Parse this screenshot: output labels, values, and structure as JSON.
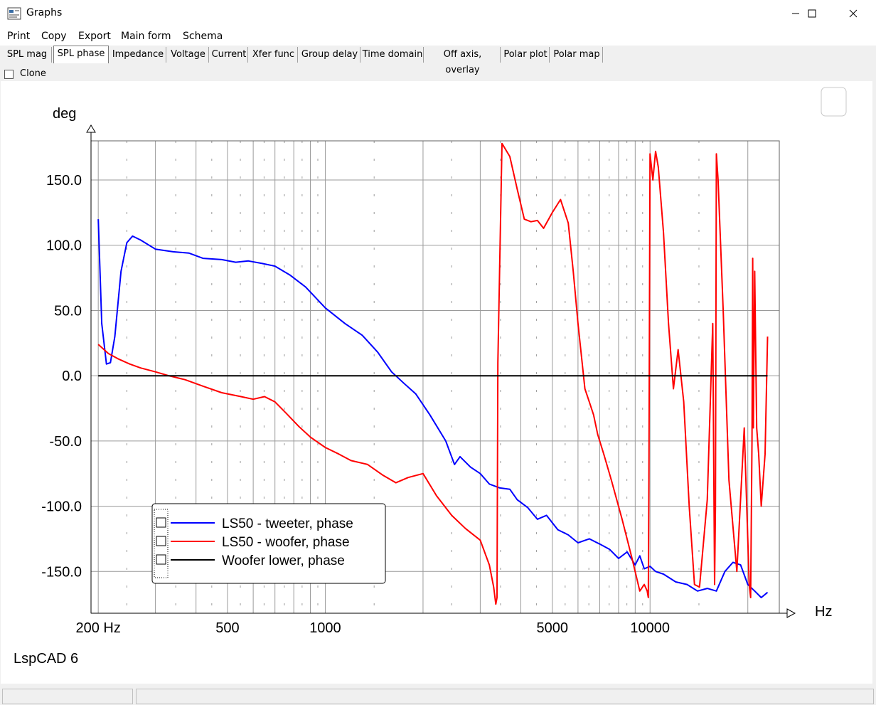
{
  "window": {
    "title": "Graphs",
    "minimize": "—",
    "maximize": "☐",
    "close": "✕"
  },
  "menu": [
    {
      "label": "Print",
      "id": "print"
    },
    {
      "label": "Copy",
      "id": "copy"
    },
    {
      "label": "Export",
      "id": "export"
    },
    {
      "label": "Main form",
      "id": "main-form"
    },
    {
      "label": "Schema",
      "id": "schema"
    }
  ],
  "tabs": [
    "SPL mag",
    "SPL phase",
    "Impedance",
    "Voltage",
    "Current",
    "Xfer func",
    "Group delay",
    "Time domain",
    "Off axis, overlay",
    "Polar plot",
    "Polar map"
  ],
  "active_tab": "SPL phase",
  "clone": {
    "label": "Clone",
    "checked": false
  },
  "footer_brand": "LspCAD 6",
  "status": {
    "left": "",
    "right": ""
  },
  "chart_data": {
    "type": "line",
    "ylabel": "deg",
    "xlabel": "Hz",
    "x_scale": "log",
    "xlim": [
      190,
      25000
    ],
    "ylim": [
      -182,
      180
    ],
    "grid": true,
    "legend_position": "bottom-left",
    "y_ticks": [
      150,
      100,
      50,
      0,
      -50,
      -100,
      -150
    ],
    "y_tick_labels": [
      "150.0",
      "100.0",
      "50.0",
      "0.0",
      "-50.0",
      "-100.0",
      "-150.0"
    ],
    "x_tick_labels": [
      {
        "x": 200,
        "label": "200 Hz"
      },
      {
        "x": 500,
        "label": "500"
      },
      {
        "x": 1000,
        "label": "1000"
      },
      {
        "x": 5000,
        "label": "5000"
      },
      {
        "x": 10000,
        "label": "10000"
      }
    ],
    "series": [
      {
        "name": "LS50 - tweeter, phase",
        "color": "#0000ff",
        "x": [
          200,
          205,
          212,
          218,
          225,
          235,
          245,
          255,
          270,
          300,
          340,
          380,
          420,
          480,
          530,
          580,
          640,
          700,
          780,
          870,
          1000,
          1150,
          1300,
          1450,
          1600,
          1750,
          1900,
          2100,
          2350,
          2500,
          2600,
          2800,
          3000,
          3200,
          3450,
          3700,
          3900,
          4200,
          4500,
          4800,
          5200,
          5600,
          6000,
          6500,
          7000,
          7500,
          8000,
          8500,
          9000,
          9300,
          9600,
          10000,
          10400,
          11000,
          12000,
          13000,
          14000,
          15000,
          16000,
          17000,
          18000,
          19000,
          20000,
          21000,
          22000,
          23000
        ],
        "y": [
          120,
          40,
          9,
          10,
          30,
          80,
          102,
          107,
          104,
          97,
          95,
          94,
          90,
          89,
          87,
          88,
          86,
          84,
          77,
          68,
          52,
          40,
          31,
          18,
          3,
          -6,
          -14,
          -30,
          -50,
          -68,
          -62,
          -70,
          -75,
          -83,
          -86,
          -87,
          -95,
          -101,
          -110,
          -107,
          -118,
          -122,
          -128,
          -125,
          -129,
          -133,
          -140,
          -135,
          -145,
          -138,
          -148,
          -146,
          -150,
          -152,
          -158,
          -160,
          -165,
          -163,
          -165,
          -150,
          -143,
          -145,
          -160,
          -165,
          -170,
          -166
        ]
      },
      {
        "name": "LS50 - woofer, phase",
        "color": "#ff0000",
        "x": [
          200,
          215,
          230,
          250,
          270,
          300,
          330,
          370,
          420,
          480,
          550,
          600,
          650,
          700,
          760,
          830,
          900,
          1000,
          1100,
          1200,
          1350,
          1500,
          1650,
          1800,
          2000,
          2200,
          2450,
          2700,
          3000,
          3200,
          3300,
          3350,
          3380,
          3400,
          3500,
          3700,
          3900,
          4100,
          4300,
          4500,
          4700,
          5000,
          5300,
          5600,
          5800,
          6000,
          6300,
          6500,
          6700,
          6900,
          7200,
          7600,
          8200,
          8800,
          9300,
          9600,
          9800,
          9880,
          9920,
          10000,
          10200,
          10400,
          10600,
          11000,
          11400,
          11800,
          12200,
          12700,
          13200,
          13700,
          14200,
          15000,
          15600,
          15800,
          15900,
          16000,
          16200,
          16800,
          17500,
          18500,
          19500,
          20200,
          20400,
          20600,
          20700,
          20800,
          21000,
          21300,
          21600,
          22000,
          22300,
          22600,
          23000
        ],
        "y": [
          24,
          17,
          13,
          9,
          6,
          3,
          0,
          -3,
          -8,
          -13,
          -16,
          -18,
          -16,
          -20,
          -29,
          -39,
          -47,
          -55,
          -60,
          -65,
          -68,
          -76,
          -82,
          -78,
          -75,
          -92,
          -107,
          -117,
          -126,
          -145,
          -162,
          -175,
          -170,
          10,
          178,
          168,
          143,
          120,
          118,
          119,
          113,
          125,
          135,
          117,
          80,
          40,
          -10,
          -20,
          -30,
          -45,
          -60,
          -80,
          -110,
          -140,
          -165,
          -160,
          -165,
          -170,
          -80,
          170,
          150,
          172,
          160,
          110,
          40,
          -10,
          20,
          -20,
          -100,
          -160,
          -162,
          -95,
          40,
          -160,
          -100,
          170,
          150,
          50,
          -80,
          -150,
          -40,
          -160,
          -170,
          -50,
          90,
          -40,
          80,
          -40,
          -60,
          -100,
          -80,
          -60,
          30
        ]
      },
      {
        "name": "Woofer lower, phase",
        "color": "#000000",
        "x": [
          200,
          23000
        ],
        "y": [
          0,
          0
        ]
      }
    ]
  }
}
